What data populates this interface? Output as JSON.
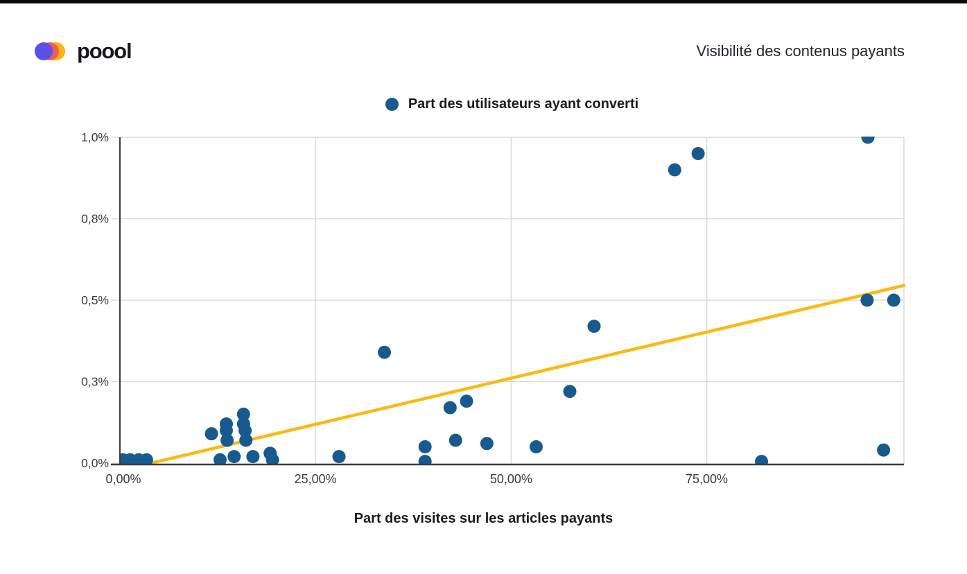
{
  "header": {
    "logo_text": "poool",
    "title": "Visibilité des contenus payants"
  },
  "chart_data": {
    "type": "scatter",
    "title": "",
    "legend": [
      {
        "label": "Part des utilisateurs ayant converti"
      }
    ],
    "legend_position": "top-center",
    "xlabel": "Part des visites sur les articles payants",
    "ylabel": "",
    "x_unit": "%",
    "y_unit": "%",
    "xlim": [
      0,
      100.2
    ],
    "ylim": [
      0,
      1.0
    ],
    "grid": true,
    "x_ticks": [
      {
        "value": 0,
        "label": "0,00%"
      },
      {
        "value": 25,
        "label": "25,00%"
      },
      {
        "value": 50,
        "label": "50,00%"
      },
      {
        "value": 75,
        "label": "75,00%"
      }
    ],
    "y_ticks": [
      {
        "value": 0,
        "label": "0,0%"
      },
      {
        "value": 0.25,
        "label": "0,3%"
      },
      {
        "value": 0.5,
        "label": "0,5%"
      },
      {
        "value": 0.75,
        "label": "0,8%"
      },
      {
        "value": 1.0,
        "label": "1,0%"
      }
    ],
    "points": [
      [
        0.4,
        0.01
      ],
      [
        1.3,
        0.01
      ],
      [
        2.4,
        0.01
      ],
      [
        3.4,
        0.01
      ],
      [
        11.7,
        0.09
      ],
      [
        12.8,
        0.01
      ],
      [
        13.6,
        0.12
      ],
      [
        13.6,
        0.1
      ],
      [
        13.7,
        0.07
      ],
      [
        14.6,
        0.02
      ],
      [
        15.8,
        0.15
      ],
      [
        15.8,
        0.12
      ],
      [
        16.0,
        0.1
      ],
      [
        16.1,
        0.07
      ],
      [
        17.0,
        0.02
      ],
      [
        19.2,
        0.03
      ],
      [
        19.5,
        0.01
      ],
      [
        28.0,
        0.02
      ],
      [
        33.8,
        0.34
      ],
      [
        39.0,
        0.05
      ],
      [
        39.0,
        0.005
      ],
      [
        42.2,
        0.17
      ],
      [
        42.9,
        0.07
      ],
      [
        44.3,
        0.19
      ],
      [
        46.9,
        0.06
      ],
      [
        53.2,
        0.05
      ],
      [
        57.5,
        0.22
      ],
      [
        60.6,
        0.42
      ],
      [
        70.9,
        0.9
      ],
      [
        73.9,
        0.95
      ],
      [
        82.0,
        0.005
      ],
      [
        95.5,
        0.5
      ],
      [
        95.6,
        1.0
      ],
      [
        97.6,
        0.04
      ],
      [
        98.9,
        0.5
      ]
    ],
    "trend_line": {
      "x1": 4.0,
      "y1": 0.0,
      "x2": 100.2,
      "y2": 0.545
    },
    "colors": {
      "point": "#175A8F",
      "trend": "#FBBA12",
      "grid": "#DADADA",
      "axis": "#3B3B3B",
      "tick_text": "#3A3A3A"
    }
  }
}
